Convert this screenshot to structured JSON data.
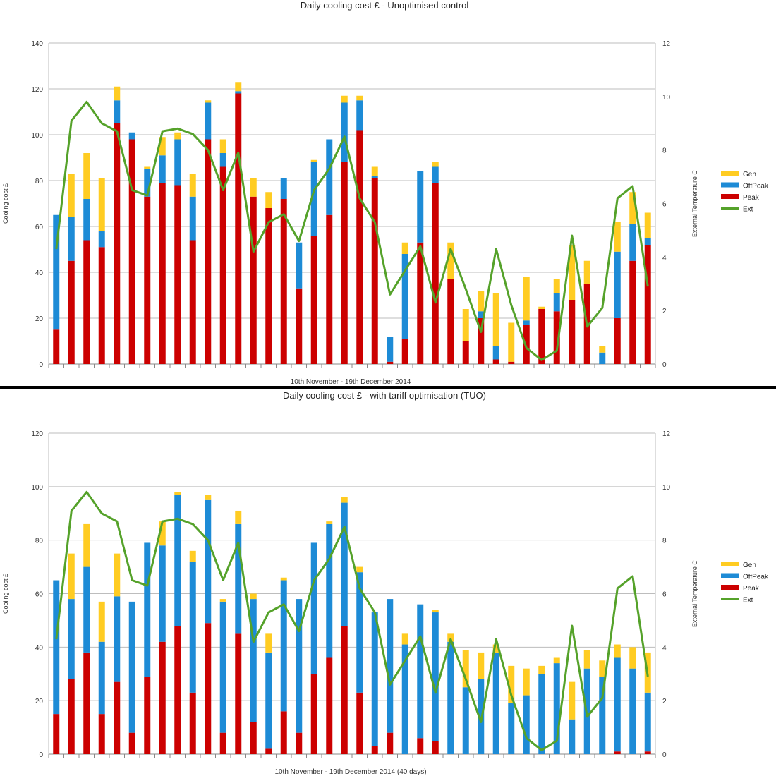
{
  "colors": {
    "gen": "#ffcc22",
    "offpeak": "#1d8bd6",
    "peak": "#cc0000",
    "ext": "#55a22a"
  },
  "chart_data": [
    {
      "type": "bar",
      "stacked": true,
      "title": "Daily cooling cost £ - Unoptimised control",
      "xlabel": "10th November - 19th December 2014",
      "ylabel": "Cooling cost £",
      "y2label": "External Temperature C",
      "ylim": [
        0,
        140
      ],
      "yticks": [
        "0",
        "20",
        "40",
        "60",
        "80",
        "100",
        "120",
        "140"
      ],
      "y2lim": [
        0,
        12
      ],
      "y2ticks": [
        "0",
        "2",
        "4",
        "6",
        "8",
        "10",
        "12"
      ],
      "grid": true,
      "legend_position": "right",
      "legend": [
        "Gen",
        "OffPeak",
        "Peak",
        "Ext"
      ],
      "series": [
        {
          "name": "Peak",
          "values": [
            15,
            45,
            54,
            51,
            105,
            98,
            73,
            79,
            78,
            54,
            98,
            86,
            118,
            73,
            68,
            72,
            33,
            56,
            65,
            88,
            102,
            81,
            1,
            11,
            53,
            79,
            37,
            10,
            20,
            2,
            1,
            17,
            24,
            23,
            28,
            35,
            0,
            20,
            45,
            52
          ]
        },
        {
          "name": "OffPeak",
          "values": [
            50,
            19,
            18,
            7,
            10,
            3,
            12,
            12,
            20,
            19,
            16,
            6,
            1,
            0,
            0,
            9,
            20,
            32,
            33,
            26,
            13,
            1,
            11,
            37,
            31,
            7,
            0,
            0,
            3,
            6,
            0,
            2,
            0,
            8,
            0,
            0,
            5,
            29,
            16,
            3
          ]
        },
        {
          "name": "Gen",
          "values": [
            0,
            19,
            20,
            23,
            6,
            0,
            1,
            8,
            3,
            10,
            1,
            6,
            4,
            8,
            7,
            0,
            0,
            1,
            0,
            3,
            2,
            4,
            0,
            5,
            0,
            2,
            16,
            14,
            9,
            23,
            17,
            19,
            1,
            6,
            24,
            10,
            3,
            13,
            14,
            11
          ]
        },
        {
          "name": "Ext",
          "axis": "right",
          "values": [
            4.3,
            9.1,
            9.8,
            9.0,
            8.7,
            6.5,
            6.3,
            8.7,
            8.8,
            8.6,
            8.0,
            6.5,
            7.9,
            4.2,
            5.3,
            5.6,
            4.6,
            6.5,
            7.3,
            8.5,
            6.2,
            5.3,
            2.6,
            3.5,
            4.4,
            2.3,
            4.3,
            2.8,
            1.2,
            4.3,
            2.2,
            0.6,
            0.15,
            0.5,
            4.8,
            1.4,
            2.1,
            6.2,
            6.65,
            2.9
          ]
        }
      ]
    },
    {
      "type": "bar",
      "stacked": true,
      "title": "Daily cooling cost £ - with tariff optimisation (TUO)",
      "xlabel": "10th November - 19th December 2014 (40 days)",
      "ylabel": "Cooling cost £",
      "y2label": "External Temperature C",
      "ylim": [
        0,
        120
      ],
      "yticks": [
        "0",
        "20",
        "40",
        "60",
        "80",
        "100",
        "120"
      ],
      "y2lim": [
        0,
        12
      ],
      "y2ticks": [
        "0",
        "2",
        "4",
        "6",
        "8",
        "10",
        "12"
      ],
      "grid": true,
      "legend_position": "right",
      "legend": [
        "Gen",
        "OffPeak",
        "Peak",
        "Ext"
      ],
      "series": [
        {
          "name": "Peak",
          "values": [
            15,
            28,
            38,
            15,
            27,
            8,
            29,
            42,
            48,
            23,
            49,
            8,
            45,
            12,
            2,
            16,
            8,
            30,
            36,
            48,
            23,
            3,
            8,
            0,
            6,
            5,
            0,
            0,
            0,
            0,
            0,
            0,
            0,
            0,
            0,
            0,
            0,
            1,
            0,
            1
          ]
        },
        {
          "name": "OffPeak",
          "values": [
            50,
            30,
            32,
            27,
            32,
            49,
            50,
            36,
            49,
            49,
            46,
            49,
            41,
            46,
            36,
            49,
            50,
            49,
            50,
            46,
            45,
            50,
            50,
            41,
            50,
            48,
            42,
            25,
            28,
            38,
            19,
            22,
            30,
            34,
            13,
            32,
            29,
            35,
            32,
            22
          ]
        },
        {
          "name": "Gen",
          "values": [
            0,
            17,
            16,
            15,
            16,
            0,
            0,
            9,
            1,
            4,
            2,
            1,
            5,
            2,
            7,
            1,
            0,
            0,
            1,
            2,
            2,
            0,
            0,
            4,
            0,
            1,
            3,
            14,
            10,
            3,
            14,
            10,
            3,
            2,
            14,
            7,
            6,
            5,
            8,
            15
          ]
        },
        {
          "name": "Ext",
          "axis": "right",
          "values": [
            4.3,
            9.1,
            9.8,
            9.0,
            8.7,
            6.5,
            6.3,
            8.7,
            8.8,
            8.6,
            8.0,
            6.5,
            7.9,
            4.2,
            5.3,
            5.6,
            4.6,
            6.5,
            7.3,
            8.5,
            6.2,
            5.3,
            2.6,
            3.5,
            4.4,
            2.3,
            4.3,
            2.8,
            1.2,
            4.3,
            2.2,
            0.6,
            0.15,
            0.5,
            4.8,
            1.4,
            2.1,
            6.2,
            6.65,
            2.9
          ]
        }
      ]
    }
  ]
}
